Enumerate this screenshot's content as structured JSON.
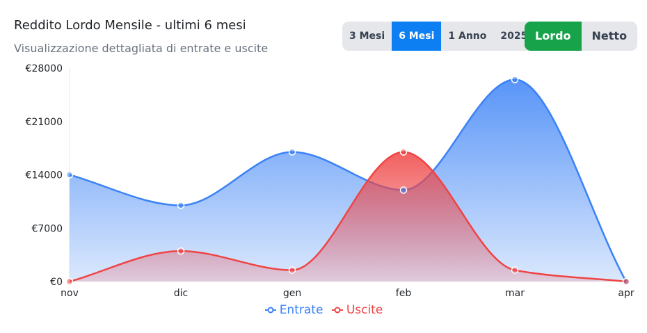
{
  "header": {
    "title": "Reddito Lordo Mensile - ultimi 6 mesi",
    "subtitle": "Visualizzazione dettagliata di entrate e uscite"
  },
  "range_buttons": [
    {
      "label": "3 Mesi",
      "active": false
    },
    {
      "label": "6 Mesi",
      "active": true
    },
    {
      "label": "1 Anno",
      "active": false
    },
    {
      "label": "2025",
      "active": false
    }
  ],
  "mode_buttons": [
    {
      "label": "Lordo",
      "active": true
    },
    {
      "label": "Netto",
      "active": false
    }
  ],
  "colors": {
    "entrate": "#3b82f6",
    "uscite": "#ef4444",
    "range_active": "#0d7ff2",
    "mode_active": "#16a34a"
  },
  "chart_data": {
    "type": "area",
    "categories": [
      "nov",
      "dic",
      "gen",
      "feb",
      "mar",
      "apr"
    ],
    "y_ticks": [
      "€0",
      "€7000",
      "€14000",
      "€21000",
      "€28000"
    ],
    "ylim": [
      0,
      28000
    ],
    "legend_position": "bottom",
    "series": [
      {
        "name": "Entrate",
        "values": [
          14000,
          10000,
          17000,
          12000,
          26500,
          0
        ]
      },
      {
        "name": "Uscite",
        "values": [
          0,
          4000,
          1500,
          17000,
          1500,
          0
        ]
      }
    ]
  }
}
